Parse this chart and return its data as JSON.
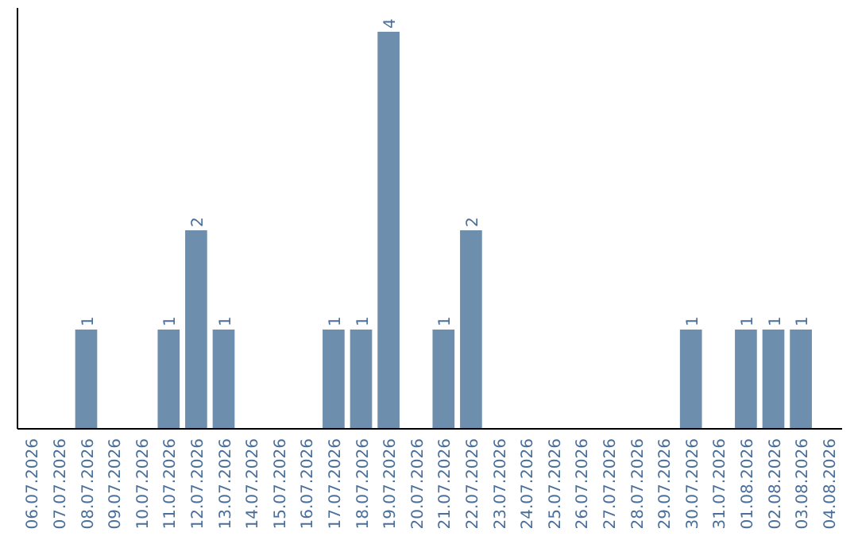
{
  "chart_data": {
    "type": "bar",
    "categories": [
      "06.07.2026",
      "07.07.2026",
      "08.07.2026",
      "09.07.2026",
      "10.07.2026",
      "11.07.2026",
      "12.07.2026",
      "13.07.2026",
      "14.07.2026",
      "15.07.2026",
      "16.07.2026",
      "17.07.2026",
      "18.07.2026",
      "19.07.2026",
      "20.07.2026",
      "21.07.2026",
      "22.07.2026",
      "23.07.2026",
      "24.07.2026",
      "25.07.2026",
      "26.07.2026",
      "27.07.2026",
      "28.07.2026",
      "29.07.2026",
      "30.07.2026",
      "31.07.2026",
      "01.08.2026",
      "02.08.2026",
      "03.08.2026",
      "04.08.2026"
    ],
    "values": [
      null,
      null,
      1,
      null,
      null,
      1,
      2,
      1,
      null,
      null,
      null,
      1,
      1,
      4,
      null,
      1,
      2,
      null,
      null,
      null,
      null,
      null,
      null,
      null,
      1,
      null,
      1,
      1,
      1,
      null
    ],
    "color": "#6d8fad",
    "data_labels": true,
    "tick_labels": "x"
  }
}
